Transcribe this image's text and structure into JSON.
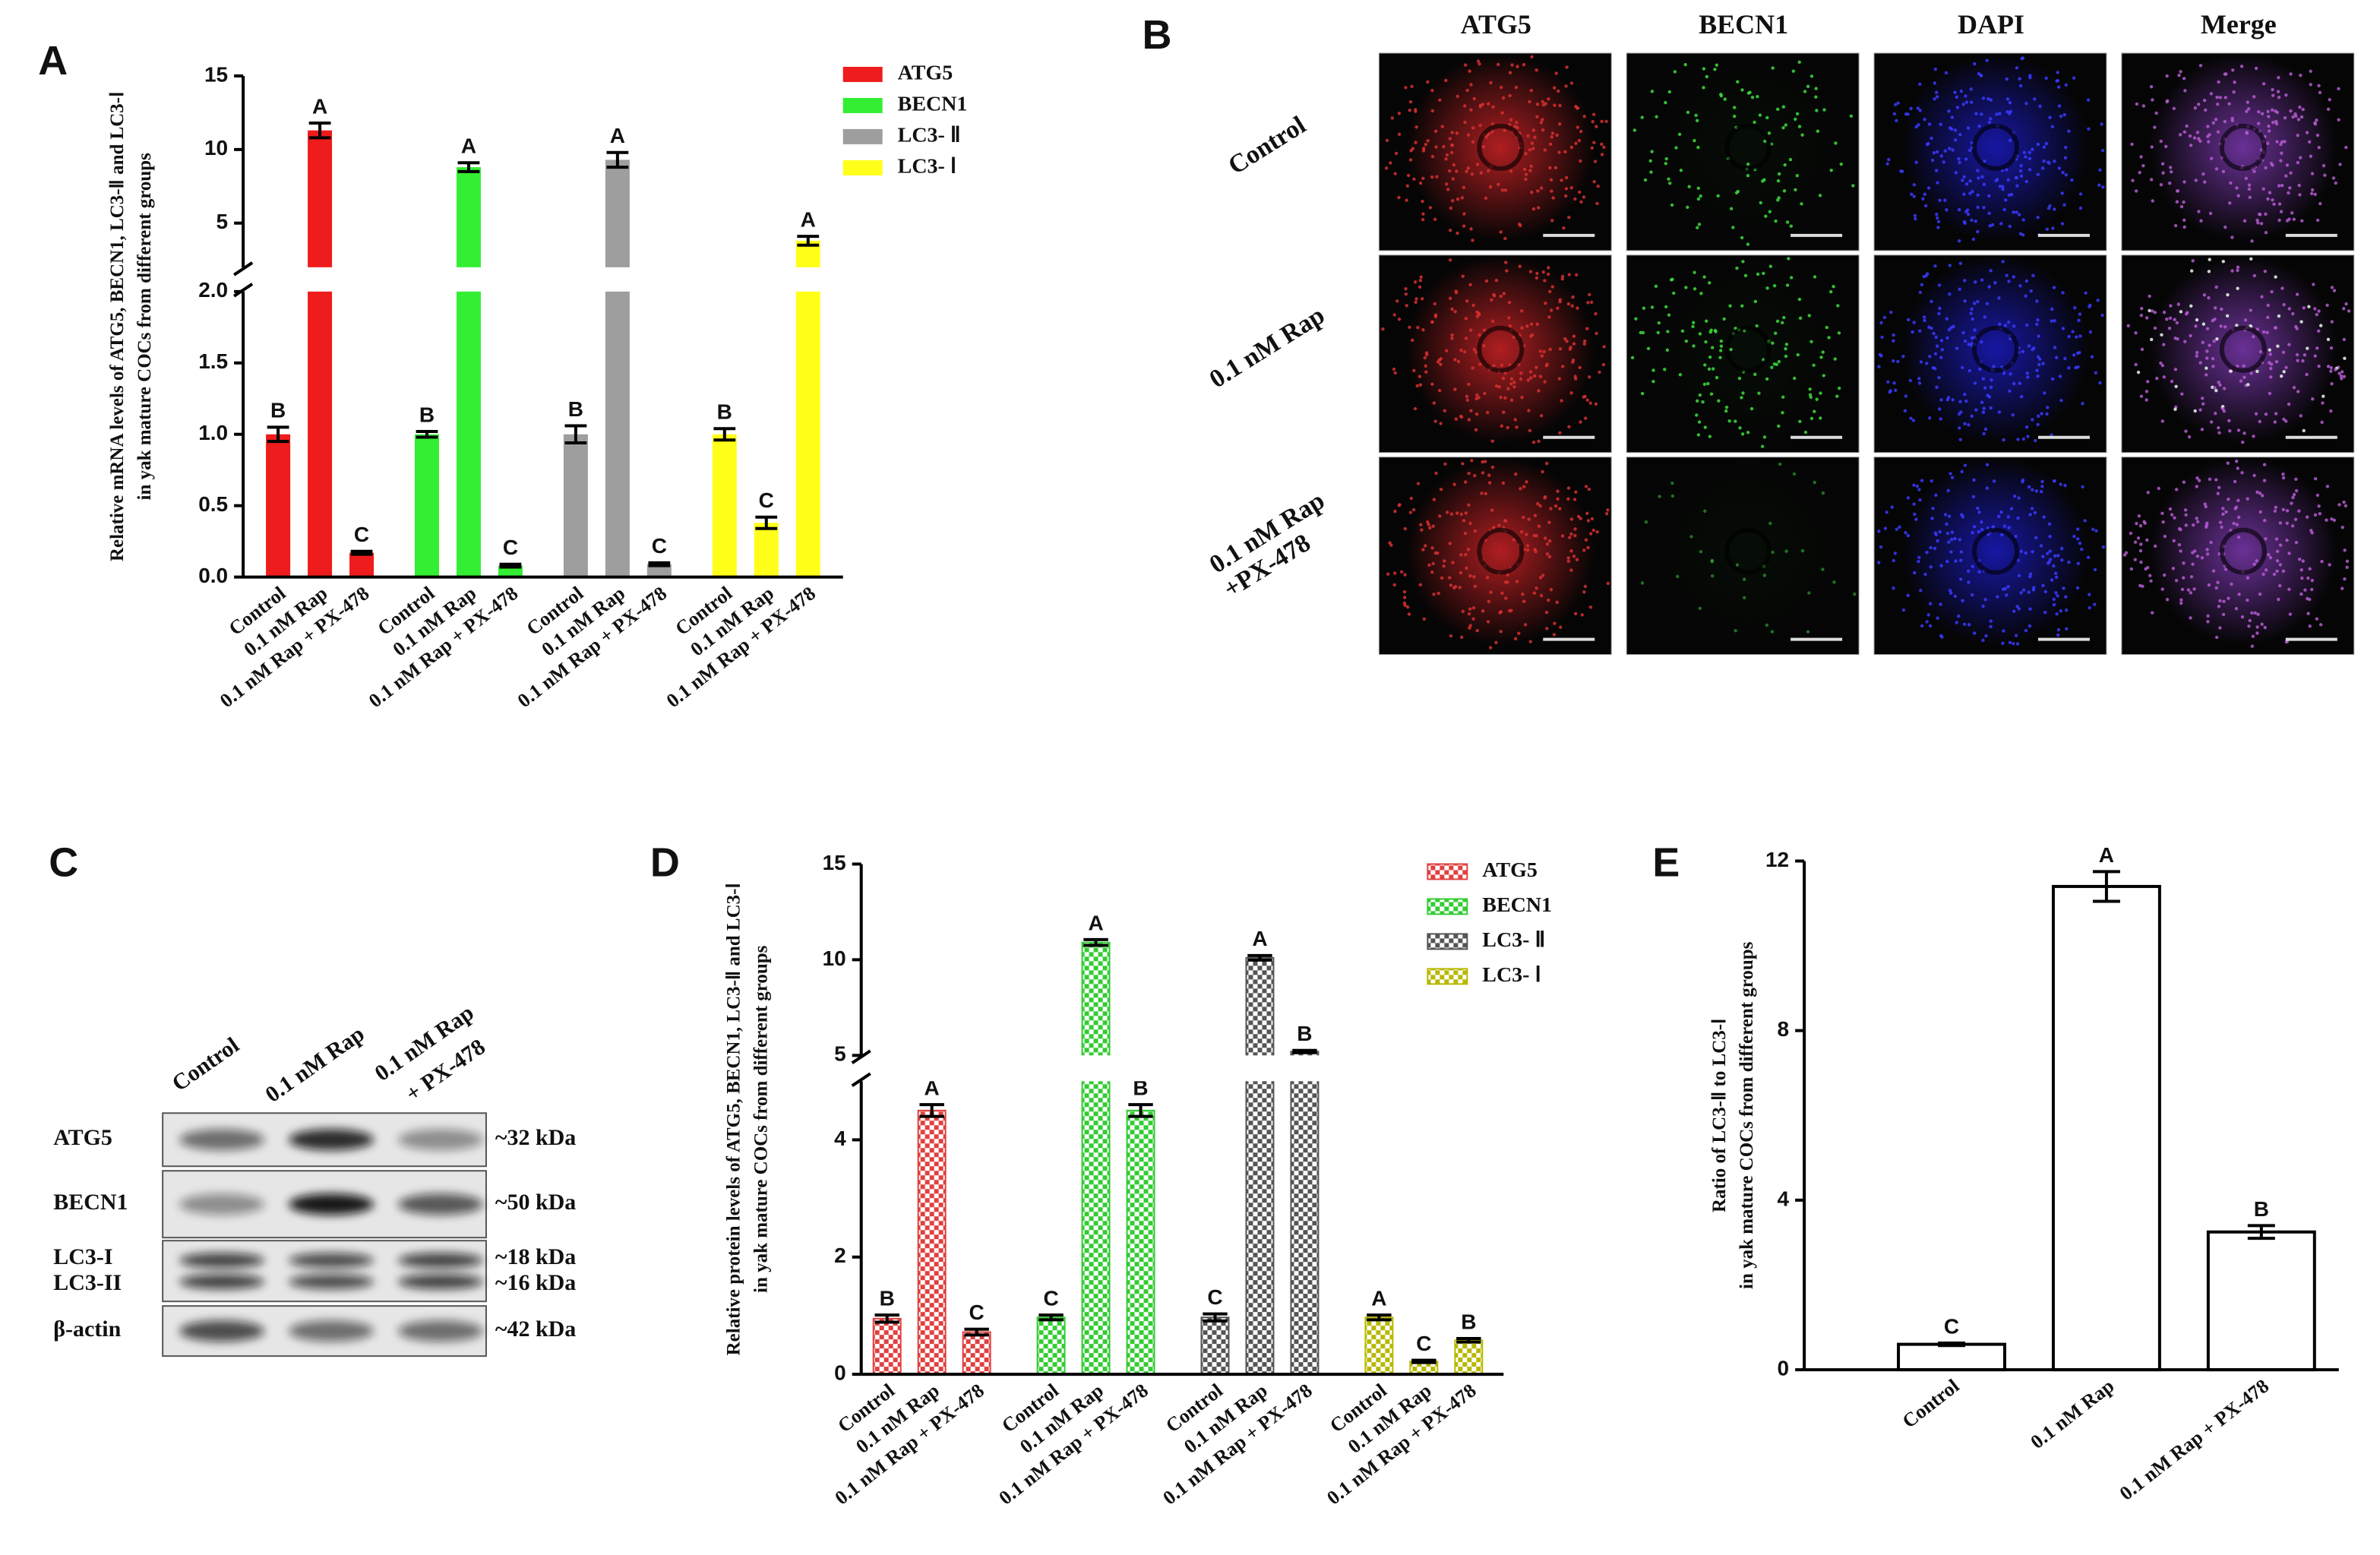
{
  "panel_labels": [
    "A",
    "B",
    "C",
    "D",
    "E"
  ],
  "chart_data": [
    {
      "type": "bar",
      "ylabel": [
        "Relative mRNA levels of ATG5, BECN1, LC3-Ⅱ and LC3-Ⅰ",
        "in yak mature COCs from different groups"
      ],
      "categories": [
        "Control",
        "0.1 nM Rap",
        "0.1 nM Rap + PX-478"
      ],
      "ylim": [
        0,
        15
      ],
      "ybreak": 2,
      "yticks": [
        {
          "value": 0,
          "label": "0.0"
        },
        0.5,
        {
          "value": 1,
          "label": "1.0"
        },
        1.5,
        {
          "value": 2,
          "label": "2.0"
        },
        5,
        10,
        15
      ],
      "legend": "upper right",
      "fill": "solid",
      "series": [
        {
          "name": "ATG5",
          "color": "#ee1c1c",
          "values": [
            1.0,
            11.3,
            0.17
          ],
          "errors": [
            0.05,
            0.5,
            0.01
          ],
          "letters": [
            "B",
            "A",
            "C"
          ]
        },
        {
          "name": "BECN1",
          "color": "#33ee33",
          "values": [
            1.0,
            8.8,
            0.08
          ],
          "errors": [
            0.02,
            0.3,
            0.01
          ],
          "letters": [
            "B",
            "A",
            "C"
          ]
        },
        {
          "name": "LC3- Ⅱ",
          "color": "#9e9e9e",
          "values": [
            1.0,
            9.3,
            0.09
          ],
          "errors": [
            0.06,
            0.5,
            0.01
          ],
          "letters": [
            "B",
            "A",
            "C"
          ]
        },
        {
          "name": "LC3- Ⅰ",
          "color": "#ffff1a",
          "values": [
            1.0,
            0.38,
            3.8
          ],
          "errors": [
            0.04,
            0.04,
            0.3
          ],
          "letters": [
            "B",
            "C",
            "A"
          ]
        }
      ]
    },
    {
      "type": "bar",
      "ylabel": [
        "Relative protein levels of ATG5, BECN1, LC3-Ⅱ and LC3-Ⅰ",
        "in yak mature COCs from different groups"
      ],
      "categories": [
        "Control",
        "0.1 nM Rap",
        "0.1 nM Rap + PX-478"
      ],
      "ylim": [
        0,
        15
      ],
      "ybreak": 5,
      "yticks": [
        0,
        2,
        4,
        5,
        10,
        15
      ],
      "legend": "upper right",
      "fill": "checker",
      "series": [
        {
          "name": "ATG5",
          "color": "#e04040",
          "values": [
            0.95,
            4.5,
            0.72
          ],
          "errors": [
            0.06,
            0.1,
            0.05
          ],
          "letters": [
            "B",
            "A",
            "C"
          ]
        },
        {
          "name": "BECN1",
          "color": "#33cc33",
          "values": [
            0.97,
            10.9,
            4.5
          ],
          "errors": [
            0.04,
            0.15,
            0.1
          ],
          "letters": [
            "C",
            "A",
            "B"
          ]
        },
        {
          "name": "LC3- Ⅱ",
          "color": "#555555",
          "values": [
            0.97,
            10.1,
            5.2
          ],
          "errors": [
            0.06,
            0.12,
            0.06
          ],
          "letters": [
            "C",
            "A",
            "B"
          ]
        },
        {
          "name": "LC3- Ⅰ",
          "color": "#b8b800",
          "values": [
            0.97,
            0.22,
            0.58
          ],
          "errors": [
            0.04,
            0.02,
            0.03
          ],
          "letters": [
            "A",
            "C",
            "B"
          ]
        }
      ]
    },
    {
      "type": "bar",
      "ylabel": [
        "Ratio of LC3-Ⅱ to LC3-Ⅰ",
        "in yak mature COCs from different groups"
      ],
      "categories": [
        "Control",
        "0.1 nM Rap",
        "0.1 nM Rap + PX-478"
      ],
      "ylim": [
        0,
        12
      ],
      "yticks": [
        0,
        4,
        8,
        12
      ],
      "color": "#ffffff",
      "edgecolor": "#000000",
      "values": [
        0.6,
        11.4,
        3.25
      ],
      "errors": [
        0.03,
        0.35,
        0.15
      ],
      "letters": [
        "C",
        "A",
        "B"
      ]
    }
  ],
  "images": {
    "columns": [
      {
        "label": "ATG5",
        "color": "#e8262a"
      },
      {
        "label": "BECN1",
        "color": "#1aa31a"
      },
      {
        "label": "DAPI",
        "color": "#1d1dd9"
      },
      {
        "label": "Merge",
        "color": "#8b3fc6"
      }
    ],
    "rows": [
      [
        "Control"
      ],
      [
        "0.1 nM Rap"
      ],
      [
        "0.1 nM Rap",
        "+PX-478"
      ]
    ]
  },
  "blot": {
    "lanes": [
      [
        "Control"
      ],
      [
        "0.1 nM Rap"
      ],
      [
        "0.1 nM Rap",
        "+ PX-478"
      ]
    ],
    "rows": [
      {
        "labels": [
          "ATG5"
        ],
        "sizes": [
          "~32 kDa"
        ]
      },
      {
        "labels": [
          "BECN1"
        ],
        "sizes": [
          "~50 kDa"
        ]
      },
      {
        "labels": [
          "LC3-I",
          "LC3-II"
        ],
        "sizes": [
          "~18 kDa",
          "~16 kDa"
        ]
      },
      {
        "labels": [
          "β-actin"
        ],
        "sizes": [
          "~42 kDa"
        ]
      }
    ]
  }
}
